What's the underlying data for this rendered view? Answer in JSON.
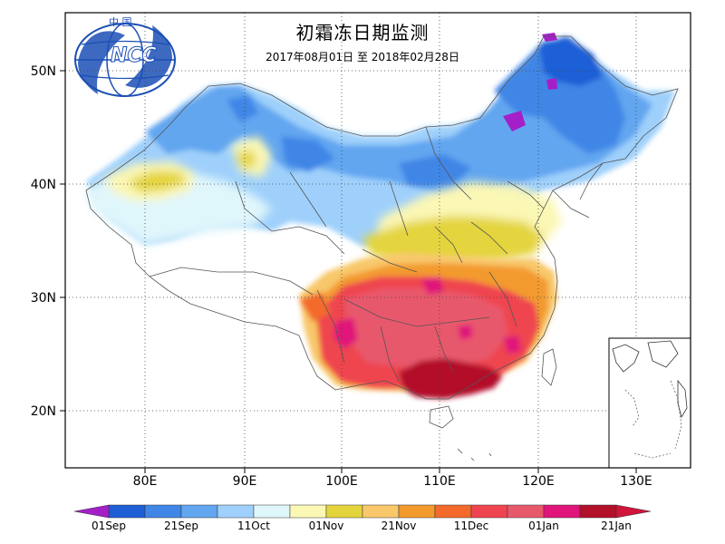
{
  "map": {
    "title": "初霜冻日期监测",
    "subtitle": "2017年08月01日  至  2018年02月28日",
    "logo": {
      "text_top": "中  国",
      "text_main": "NCC"
    },
    "lat_labels": [
      "50N",
      "40N",
      "30N",
      "20N"
    ],
    "lon_labels": [
      "80E",
      "90E",
      "100E",
      "110E",
      "120E",
      "130E"
    ],
    "colors": {
      "dark_blue": "#1e5fd6",
      "mid_blue": "#3f86e6",
      "blue": "#62a6f0",
      "light_blue": "#9fd0fb",
      "pale_cyan": "#dff6fb",
      "pale_yellow": "#fbf7b5",
      "yellow": "#e4d43c",
      "light_orange": "#f8c86b",
      "orange": "#f39a2e",
      "orange_red": "#f36a2a",
      "red": "#ef4550",
      "pink_red": "#e8596c",
      "magenta": "#e0147a",
      "dark_red": "#b3102a",
      "purple": "#a51fc9"
    }
  },
  "legend": {
    "labels": [
      "01Sep",
      "21Sep",
      "11Oct",
      "01Nov",
      "21Nov",
      "11Dec",
      "01Jan",
      "21Jan"
    ],
    "colors": [
      "#1e5fd6",
      "#3f86e6",
      "#62a6f0",
      "#9fd0fb",
      "#dff6fb",
      "#fbf7b5",
      "#e4d43c",
      "#f8c86b",
      "#f39a2e",
      "#f36a2a",
      "#ef4550",
      "#e8596c",
      "#e0147a",
      "#b3102a"
    ],
    "left_arrow_color": "#a51fc9",
    "right_arrow_color": "#d0143b"
  }
}
